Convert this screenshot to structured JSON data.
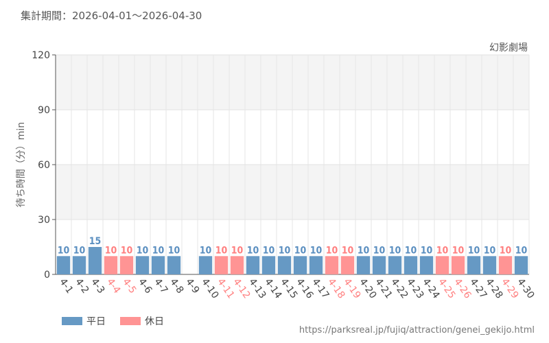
{
  "header": {
    "period": "集計期間：2026-04-01～2026-04-30"
  },
  "footer": {
    "url": "https://parksreal.jp/fujiq/attraction/genei_gekijo.html"
  },
  "legend": [
    {
      "label": "平日",
      "color": "#6699c4"
    },
    {
      "label": "休日",
      "color": "#ff9494"
    }
  ],
  "colors": {
    "weekday": "#6699c4",
    "holiday": "#ff9494",
    "weekday_text": "#5b8fc0",
    "holiday_text": "#ff8080"
  },
  "chart_data": {
    "type": "bar",
    "title": "幻影劇場",
    "ylabel": "待ち時間（分）min",
    "xlabel": "",
    "ylim": [
      0,
      120
    ],
    "yticks": [
      0,
      30,
      60,
      90,
      120
    ],
    "grid": true,
    "legend_position": "bottom-left",
    "categories": [
      "4-1",
      "4-2",
      "4-3",
      "4-4",
      "4-5",
      "4-6",
      "4-7",
      "4-8",
      "4-9",
      "4-10",
      "4-11",
      "4-12",
      "4-13",
      "4-14",
      "4-15",
      "4-16",
      "4-17",
      "4-18",
      "4-19",
      "4-20",
      "4-21",
      "4-22",
      "4-23",
      "4-24",
      "4-25",
      "4-26",
      "4-27",
      "4-28",
      "4-29",
      "4-30"
    ],
    "values": [
      10,
      10,
      15,
      10,
      10,
      10,
      10,
      10,
      null,
      10,
      10,
      10,
      10,
      10,
      10,
      10,
      10,
      10,
      10,
      10,
      10,
      10,
      10,
      10,
      10,
      10,
      10,
      10,
      10,
      10
    ],
    "day_type": [
      "平日",
      "平日",
      "平日",
      "休日",
      "休日",
      "平日",
      "平日",
      "平日",
      "平日",
      "平日",
      "休日",
      "休日",
      "平日",
      "平日",
      "平日",
      "平日",
      "平日",
      "休日",
      "休日",
      "平日",
      "平日",
      "平日",
      "平日",
      "平日",
      "休日",
      "休日",
      "平日",
      "平日",
      "休日",
      "平日"
    ]
  }
}
